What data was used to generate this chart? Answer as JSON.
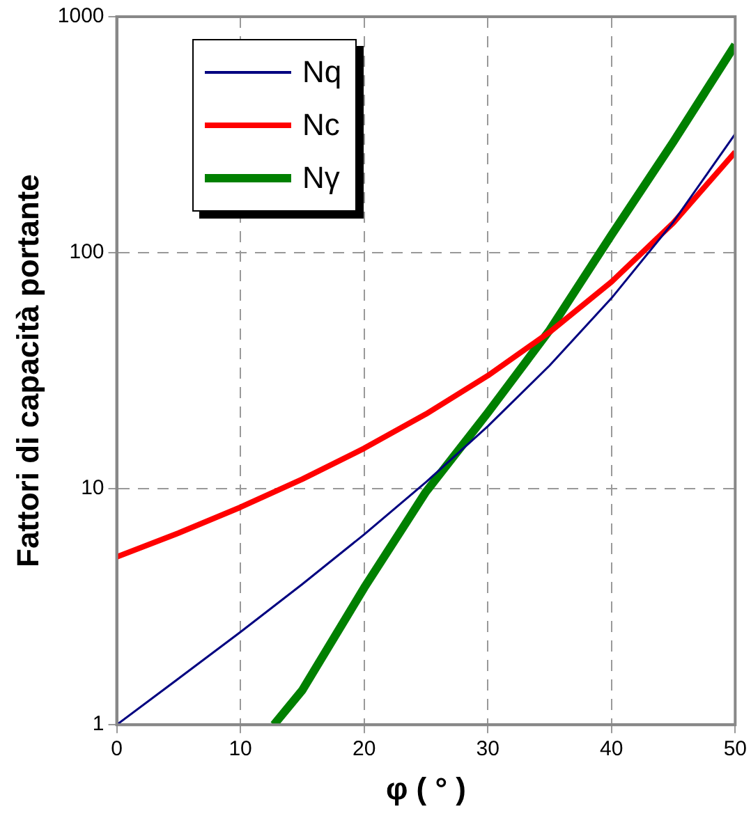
{
  "chart_data": {
    "type": "line",
    "xlabel": "φ ( ° )",
    "ylabel": "Fattori di capacità portante",
    "log": "y",
    "xlim": [
      0,
      50
    ],
    "xticks": [
      0,
      10,
      20,
      30,
      40,
      50
    ],
    "ylim": [
      1,
      1000
    ],
    "yticks": [
      1,
      10,
      100,
      1000
    ],
    "grid": true,
    "legend": "top left",
    "marker": "none",
    "series": [
      {
        "name": "Nq",
        "color": "#000080",
        "x": [
          0,
          5,
          10,
          15,
          20,
          25,
          30,
          35,
          40,
          45,
          50
        ],
        "values": [
          1,
          1.57,
          2.47,
          3.94,
          6.4,
          10.66,
          18.4,
          33.3,
          64.2,
          134.9,
          319
        ]
      },
      {
        "name": "Nc",
        "color": "#ff0000",
        "x": [
          0,
          5,
          10,
          15,
          20,
          25,
          30,
          35,
          40,
          45,
          50
        ],
        "values": [
          5.14,
          6.49,
          8.35,
          10.98,
          14.83,
          20.72,
          30.14,
          46.12,
          75.31,
          133.9,
          266.9
        ]
      },
      {
        "name": "Nγ",
        "color": "#008000",
        "x": [
          12.7,
          15,
          20,
          25,
          30,
          35,
          40,
          45,
          50
        ],
        "values": [
          1,
          1.4,
          3.8,
          9.7,
          21,
          47,
          119,
          295,
          760
        ]
      }
    ]
  }
}
